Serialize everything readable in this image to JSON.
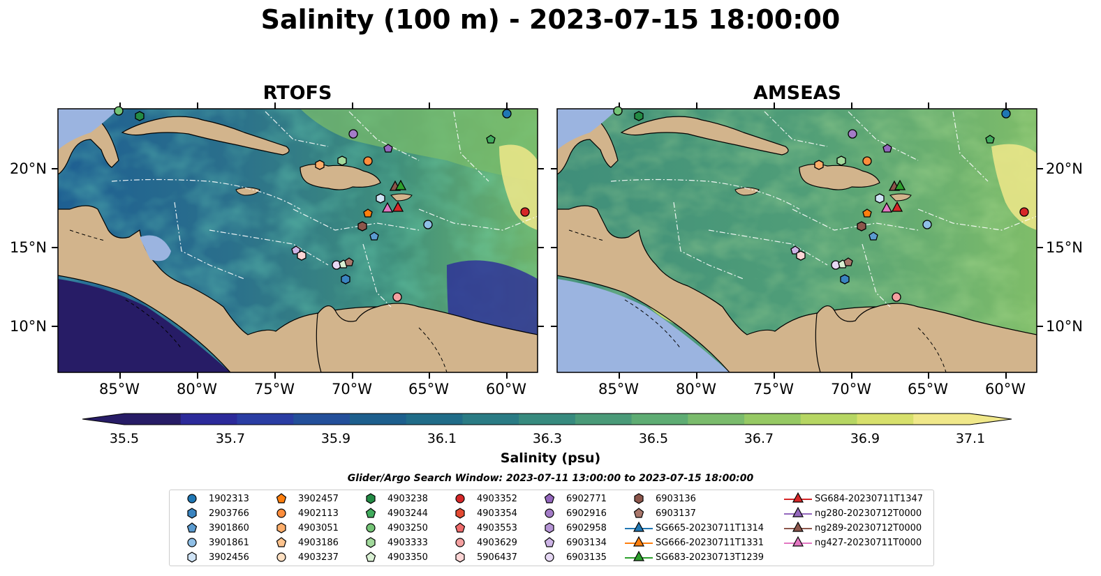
{
  "figure": {
    "title": "Salinity (100 m) - 2023-07-15 18:00:00",
    "panels": [
      {
        "title": "RTOFS"
      },
      {
        "title": "AMSEAS"
      }
    ],
    "lat_labels": [
      "20°N",
      "15°N",
      "10°N"
    ],
    "lon_labels": [
      "85°W",
      "80°W",
      "75°W",
      "70°W",
      "65°W",
      "60°W"
    ],
    "colors": {
      "land": "#d2b48c",
      "shallow_water": "#9bb4e0",
      "coast": "#000000"
    }
  },
  "colorbar": {
    "label": "Salinity (psu)",
    "ticks": [
      "35.5",
      "35.7",
      "35.9",
      "36.1",
      "36.3",
      "36.5",
      "36.7",
      "36.9",
      "37.1"
    ],
    "min": 35.5,
    "max": 37.2,
    "colors": [
      "#271c66",
      "#2c2a9a",
      "#2a3da3",
      "#234f9a",
      "#1d5f8d",
      "#206c88",
      "#2a7b84",
      "#378a7e",
      "#4a9a78",
      "#5eac73",
      "#7abb6c",
      "#96c964",
      "#b6d663",
      "#d7e06c",
      "#f0e88a"
    ]
  },
  "legend": {
    "title": "Glider/Argo Search Window: 2023-07-11 13:00:00 to 2023-07-15 18:00:00",
    "columns": [
      [
        {
          "label": "1902313",
          "marker": "circle",
          "color": "#1f77b4"
        },
        {
          "label": "2903766",
          "marker": "hexagon",
          "color": "#3a84c0"
        },
        {
          "label": "3901860",
          "marker": "pentagon",
          "color": "#5b9bd0"
        },
        {
          "label": "3901861",
          "marker": "circle",
          "color": "#8fbfe6"
        },
        {
          "label": "3902456",
          "marker": "hexagon",
          "color": "#cfe3f5"
        }
      ],
      [
        {
          "label": "3902457",
          "marker": "pentagon",
          "color": "#ff7f0e"
        },
        {
          "label": "4902113",
          "marker": "circle",
          "color": "#fd8d3c"
        },
        {
          "label": "4903051",
          "marker": "hexagon",
          "color": "#fdae6b"
        },
        {
          "label": "4903186",
          "marker": "pentagon",
          "color": "#fdc38d"
        },
        {
          "label": "4903237",
          "marker": "circle",
          "color": "#fee0c2"
        }
      ],
      [
        {
          "label": "4903238",
          "marker": "hexagon",
          "color": "#238b45"
        },
        {
          "label": "4903244",
          "marker": "pentagon",
          "color": "#41ab5d"
        },
        {
          "label": "4903250",
          "marker": "circle",
          "color": "#74c476"
        },
        {
          "label": "4903333",
          "marker": "hexagon",
          "color": "#a1d99b"
        },
        {
          "label": "4903350",
          "marker": "pentagon",
          "color": "#d9f0d3"
        }
      ],
      [
        {
          "label": "4903352",
          "marker": "circle",
          "color": "#d62728"
        },
        {
          "label": "4903354",
          "marker": "hexagon",
          "color": "#e34a33"
        },
        {
          "label": "4903553",
          "marker": "pentagon",
          "color": "#ef6b6b"
        },
        {
          "label": "4903629",
          "marker": "circle",
          "color": "#f4a0a0"
        },
        {
          "label": "5906437",
          "marker": "hexagon",
          "color": "#fcd5d5"
        }
      ],
      [
        {
          "label": "6902771",
          "marker": "pentagon",
          "color": "#9467bd"
        },
        {
          "label": "6902916",
          "marker": "circle",
          "color": "#a47cc8"
        },
        {
          "label": "6902958",
          "marker": "hexagon",
          "color": "#b695d6"
        },
        {
          "label": "6903134",
          "marker": "pentagon",
          "color": "#cdb4e6"
        },
        {
          "label": "6903135",
          "marker": "circle",
          "color": "#e6d8f4"
        }
      ],
      [
        {
          "label": "6903136",
          "marker": "hexagon",
          "color": "#8c564b"
        },
        {
          "label": "6903137",
          "marker": "pentagon",
          "color": "#a9776b"
        },
        {
          "label": "SG665-20230711T1314",
          "marker": "triangle-line",
          "color": "#1f77b4"
        },
        {
          "label": "SG666-20230711T1331",
          "marker": "triangle-line",
          "color": "#ff7f0e"
        },
        {
          "label": "SG683-20230713T1239",
          "marker": "triangle-line",
          "color": "#2ca02c"
        }
      ],
      [
        {
          "label": "SG684-20230711T1347",
          "marker": "triangle-line",
          "color": "#d62728"
        },
        {
          "label": "ng280-20230712T0000",
          "marker": "triangle-line",
          "color": "#9467bd"
        },
        {
          "label": "ng289-20230712T0000",
          "marker": "triangle-line",
          "color": "#8c564b"
        },
        {
          "label": "ng427-20230711T0000",
          "marker": "triangle-line",
          "color": "#e377c2"
        }
      ]
    ]
  }
}
